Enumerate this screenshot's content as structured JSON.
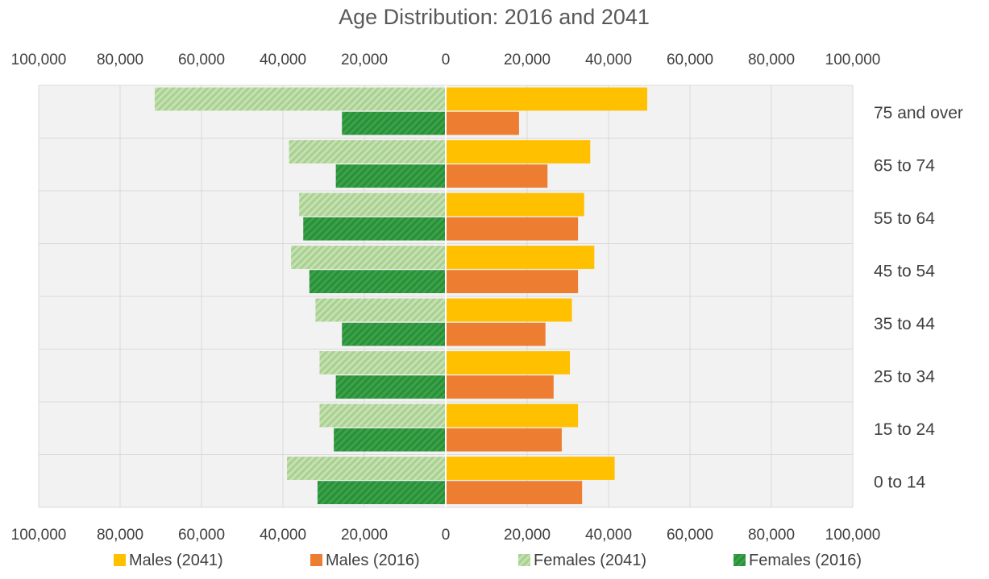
{
  "chart_data": {
    "type": "bar",
    "orientation": "horizontal",
    "layout": "population-pyramid",
    "title": "Age Distribution: 2016 and 2041",
    "categories": [
      "0 to 14",
      "15 to 24",
      "25 to 34",
      "35 to 44",
      "45 to 54",
      "55 to 64",
      "65 to 74",
      "75 and over"
    ],
    "xlim": [
      -100000,
      100000
    ],
    "x_ticks": [
      -100000,
      -80000,
      -60000,
      -40000,
      -20000,
      0,
      20000,
      40000,
      60000,
      80000,
      100000
    ],
    "x_tick_labels": [
      "100,000",
      "80,000",
      "60,000",
      "40,000",
      "20,000",
      "0",
      "20,000",
      "40,000",
      "60,000",
      "80,000",
      "100,000"
    ],
    "grid": true,
    "legend_position": "bottom",
    "series": [
      {
        "name": "Males (2041)",
        "side": "right",
        "color": "#FFC000",
        "pattern": "solid",
        "values": [
          41500,
          32500,
          30500,
          31000,
          36500,
          34000,
          35500,
          49500
        ]
      },
      {
        "name": "Males (2016)",
        "side": "right",
        "color": "#ED7D31",
        "pattern": "solid",
        "values": [
          33500,
          28500,
          26500,
          24500,
          32500,
          32500,
          25000,
          18000
        ]
      },
      {
        "name": "Females (2041)",
        "side": "left",
        "color": "#A9D18E",
        "pattern": "diagonal-light",
        "values": [
          39000,
          31000,
          31000,
          32000,
          38000,
          36000,
          38500,
          71500
        ]
      },
      {
        "name": "Females (2016)",
        "side": "left",
        "color": "#2E9B3E",
        "pattern": "diagonal-dark",
        "values": [
          31500,
          27500,
          27000,
          25500,
          33500,
          35000,
          27000,
          25500
        ]
      }
    ]
  }
}
